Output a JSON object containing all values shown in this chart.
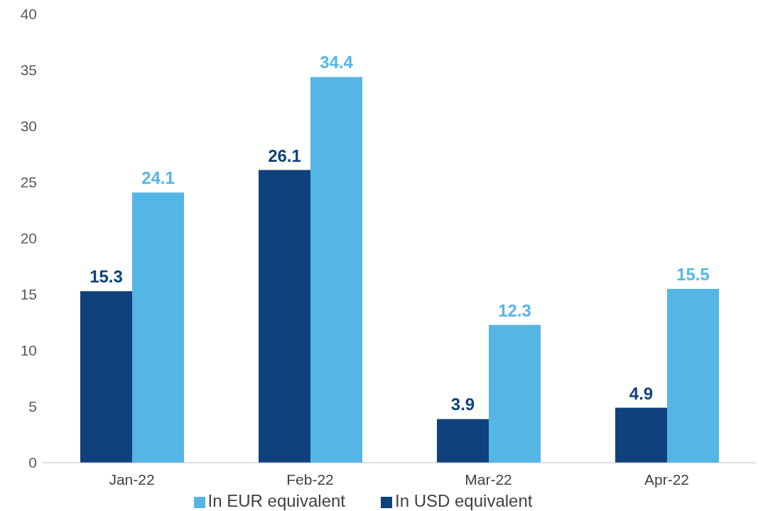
{
  "chart_data": {
    "type": "bar",
    "categories": [
      "Jan-22",
      "Feb-22",
      "Mar-22",
      "Apr-22"
    ],
    "series": [
      {
        "name": "In USD equivalent",
        "color": "#0f417c",
        "values": [
          15.3,
          26.1,
          3.9,
          4.9
        ]
      },
      {
        "name": "In EUR equivalent",
        "color": "#55b6e6",
        "values": [
          24.1,
          34.4,
          12.3,
          15.5
        ]
      }
    ],
    "ylim": [
      0,
      40
    ],
    "yticks": [
      0,
      5,
      10,
      15,
      20,
      25,
      30,
      35,
      40
    ],
    "grid": false,
    "legend": "bottom",
    "data_labels": true
  }
}
